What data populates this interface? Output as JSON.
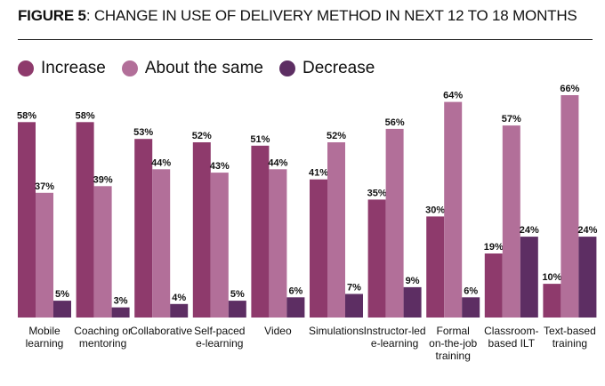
{
  "title": {
    "prefix": "FIGURE 5",
    "text": ": CHANGE IN USE OF DELIVERY METHOD IN NEXT 12 TO 18 MONTHS"
  },
  "colors": {
    "increase": "#8e3a6c",
    "about_same": "#b26f99",
    "decrease": "#5d2e63"
  },
  "chart_data": {
    "type": "bar",
    "title": "FIGURE 5: CHANGE IN USE OF DELIVERY METHOD IN NEXT 12 TO 18 MONTHS",
    "categories": [
      [
        "Mobile",
        "learning"
      ],
      [
        "Coaching or",
        "mentoring"
      ],
      [
        "Collaborative"
      ],
      [
        "Self-paced",
        "e-learning"
      ],
      [
        "Video"
      ],
      [
        "Simulations"
      ],
      [
        "Instructor-led",
        "e-learning"
      ],
      [
        "Formal",
        "on-the-job",
        "training"
      ],
      [
        "Classroom-",
        "based ILT"
      ],
      [
        "Text-based",
        "training"
      ]
    ],
    "series": [
      {
        "name": "Increase",
        "color": "#8e3a6c",
        "values": [
          58,
          58,
          53,
          52,
          51,
          41,
          35,
          30,
          19,
          10
        ]
      },
      {
        "name": "About the same",
        "color": "#b26f99",
        "values": [
          37,
          39,
          44,
          43,
          44,
          52,
          56,
          64,
          57,
          66
        ]
      },
      {
        "name": "Decrease",
        "color": "#5d2e63",
        "values": [
          5,
          3,
          4,
          5,
          6,
          7,
          9,
          6,
          24,
          24
        ]
      }
    ],
    "value_suffix": "%",
    "ylim": [
      0,
      66
    ],
    "legend_position": "top-left",
    "grid": false
  }
}
